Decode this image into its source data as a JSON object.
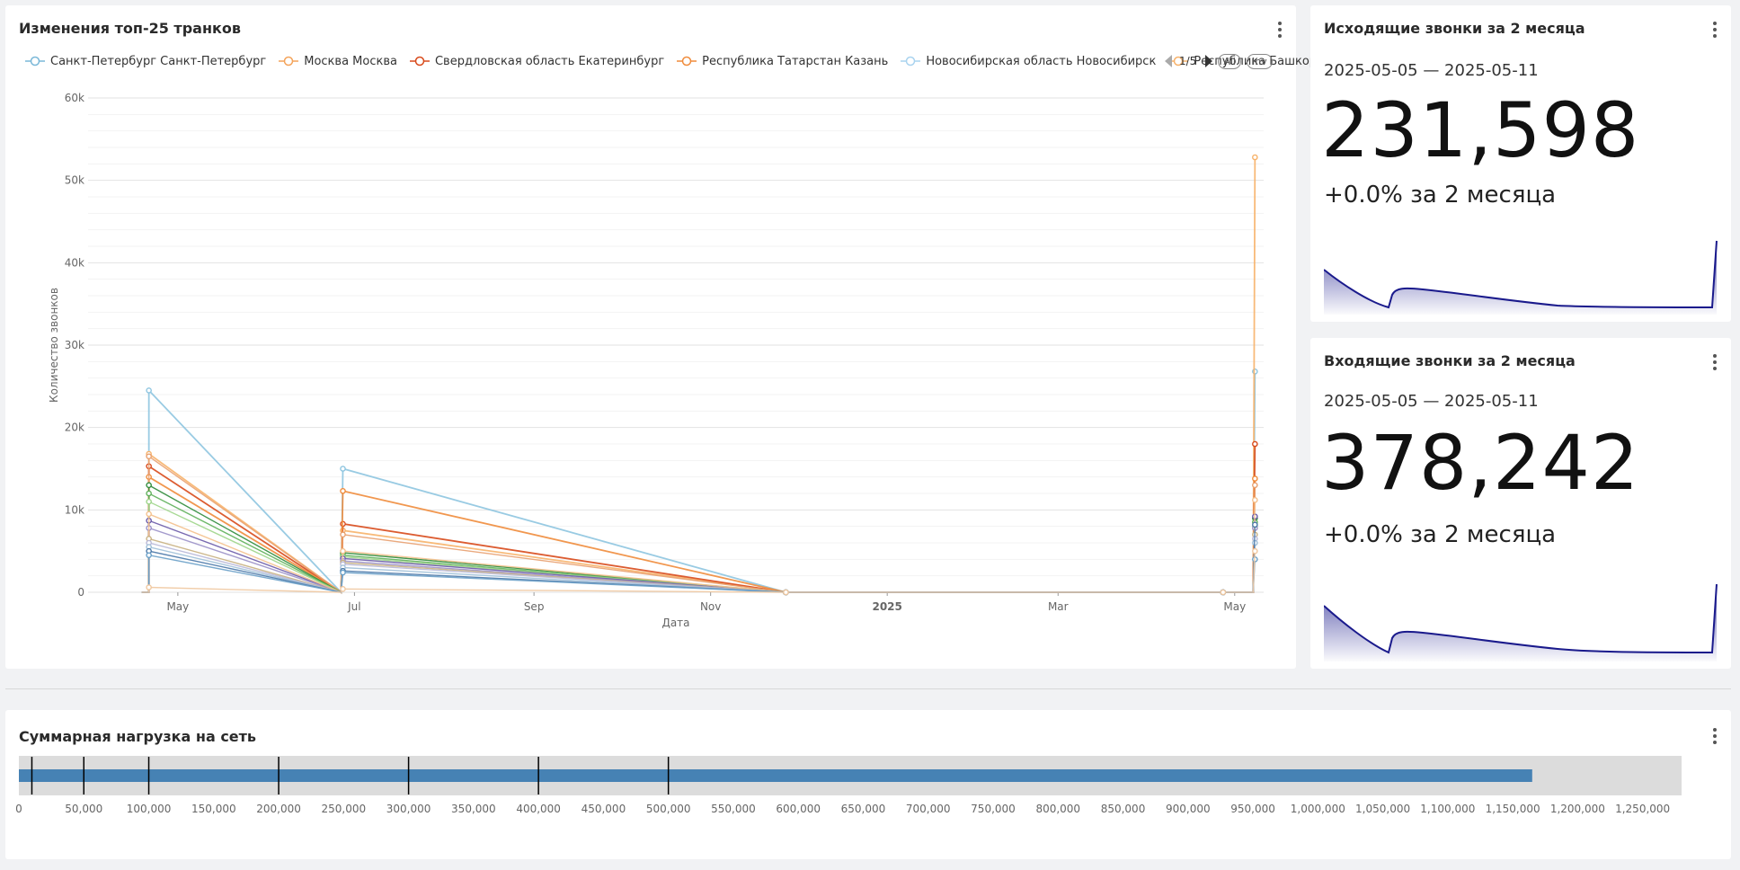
{
  "trunks_panel": {
    "title": "Изменения топ-25 транков",
    "legend": [
      {
        "label": "Санкт-Петербург Санкт-Петербург",
        "color": "#7ab8d8"
      },
      {
        "label": "Москва Москва",
        "color": "#f4a35a"
      },
      {
        "label": "Свердловская область Екатеринбург",
        "color": "#d84a1b"
      },
      {
        "label": "Республика Татарстан Казань",
        "color": "#f08c3c"
      },
      {
        "label": "Новосибирская область Новосибирск",
        "color": "#a9d3ef"
      },
      {
        "label": "Республика Башкорт",
        "color": "#f7b26a"
      }
    ],
    "legend_page": "1/5",
    "legend_all": "All",
    "legend_inv": "Inv",
    "chart_data": {
      "type": "line",
      "xlabel": "Дата",
      "ylabel": "Количество звонков",
      "ylim": [
        0,
        60000
      ],
      "y_ticks": [
        "0",
        "10k",
        "20k",
        "30k",
        "40k",
        "50k",
        "60k"
      ],
      "x_ticks": [
        "May",
        "Jul",
        "Sep",
        "Nov",
        "2025",
        "Mar",
        "May"
      ],
      "x_dates": [
        "2024-04-21",
        "2024-06-27",
        "2024-11-27",
        "2025-04-27",
        "2025-05-08"
      ],
      "series": [
        {
          "name": "Санкт-Петербург Санкт-Петербург",
          "color": "#8ec5e0",
          "values": [
            24500,
            15000,
            0,
            0,
            26800
          ]
        },
        {
          "name": "Москва Москва",
          "color": "#f7b26a",
          "values": [
            16800,
            7500,
            0,
            0,
            52800
          ]
        },
        {
          "name": "Свердловская область Екатеринбург",
          "color": "#d84a1b",
          "values": [
            15300,
            8300,
            0,
            0,
            18000
          ]
        },
        {
          "name": "Республика Татарстан Казань",
          "color": "#f08c3c",
          "values": [
            14000,
            12300,
            0,
            0,
            13800
          ]
        },
        {
          "color": "#e8a070",
          "values": [
            16500,
            7000,
            0,
            0,
            13000
          ]
        },
        {
          "color": "#2e8b3a",
          "values": [
            13000,
            4800,
            0,
            0,
            9000
          ]
        },
        {
          "color": "#5fb05a",
          "values": [
            12000,
            4500,
            0,
            0,
            8500
          ]
        },
        {
          "color": "#9ed58a",
          "values": [
            11000,
            4300,
            0,
            0,
            8000
          ]
        },
        {
          "color": "#6a5aa8",
          "values": [
            8700,
            4100,
            0,
            0,
            9200
          ]
        },
        {
          "color": "#9a90c8",
          "values": [
            7800,
            3800,
            0,
            0,
            7800
          ]
        },
        {
          "color": "#f4c08c",
          "values": [
            9500,
            5000,
            0,
            0,
            11200
          ]
        },
        {
          "color": "#c8b080",
          "values": [
            6500,
            3600,
            0,
            0,
            7000
          ]
        },
        {
          "color": "#b8b8d8",
          "values": [
            6000,
            3400,
            0,
            0,
            6500
          ]
        },
        {
          "color": "#a0c0d8",
          "values": [
            5500,
            3000,
            0,
            0,
            6000
          ]
        },
        {
          "color": "#4a78a8",
          "values": [
            5000,
            2600,
            0,
            0,
            8200
          ]
        },
        {
          "color": "#6aa0c8",
          "values": [
            4500,
            2400,
            0,
            0,
            4000
          ]
        },
        {
          "color": "#f0c8a0",
          "values": [
            600,
            400,
            0,
            0,
            5000
          ]
        }
      ]
    }
  },
  "outgoing_panel": {
    "title": "Исходящие звонки за 2 месяца",
    "range": "2025-05-05 — 2025-05-11",
    "value": "231,598",
    "delta": "+0.0% за 2 месяца"
  },
  "incoming_panel": {
    "title": "Входящие звонки за 2 месяца",
    "range": "2025-05-05 — 2025-05-11",
    "value": "378,242",
    "delta": "+0.0% за 2 месяца"
  },
  "load_panel": {
    "title": "Суммарная нагрузка на сеть",
    "chart_data": {
      "type": "bar",
      "orientation": "horizontal",
      "value": 1165000,
      "xlim": [
        0,
        1280000
      ],
      "markers": [
        10000,
        50000,
        100000,
        200000,
        300000,
        400000,
        500000
      ],
      "ticks": [
        "0",
        "50,000",
        "100,000",
        "150,000",
        "200,000",
        "250,000",
        "300,000",
        "350,000",
        "400,000",
        "450,000",
        "500,000",
        "550,000",
        "600,000",
        "650,000",
        "700,000",
        "750,000",
        "800,000",
        "850,000",
        "900,000",
        "950,000",
        "1,000,000",
        "1,050,000",
        "1,100,000",
        "1,150,000",
        "1,200,000",
        "1,250,000"
      ],
      "bar_color": "#4682b4"
    }
  }
}
